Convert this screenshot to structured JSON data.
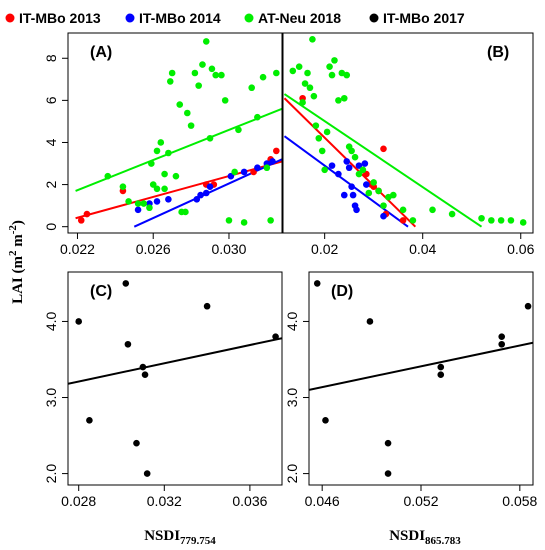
{
  "chart_data": {
    "type": "scatter",
    "ylabel_main": "LAI (m",
    "ylabel_sup1": "2",
    "ylabel_mid": " m",
    "ylabel_sup2": "-2",
    "ylabel_end": ")",
    "xlabel_left_main": "NSDI",
    "xlabel_left_sub": "779.754",
    "xlabel_right_main": "NSDI",
    "xlabel_right_sub": "865.783",
    "legend": [
      {
        "name": "IT-MBo 2013",
        "color": "#ff0000"
      },
      {
        "name": "IT-MBo 2014",
        "color": "#0000ff"
      },
      {
        "name": "AT-Neu 2018",
        "color": "#00ee00"
      },
      {
        "name": "IT-MBo 2017",
        "color": "#000000"
      }
    ],
    "panels": [
      {
        "label": "(A)",
        "xlim": [
          0.0215,
          0.0328
        ],
        "ylim": [
          -0.3,
          9.2
        ],
        "xticks": [
          0.022,
          0.026,
          0.03
        ],
        "xtick_labels": [
          "0.022",
          "0.026",
          "0.030"
        ],
        "yticks": [
          0,
          2,
          4,
          6,
          8
        ],
        "ytick_labels": [
          "0",
          "2",
          "4",
          "6",
          "8"
        ],
        "series": [
          {
            "color": "#ff0000",
            "points": [
              [
                0.0222,
                0.3
              ],
              [
                0.0225,
                0.6
              ],
              [
                0.0244,
                1.7
              ],
              [
                0.0288,
                2.0
              ],
              [
                0.0292,
                2.0
              ],
              [
                0.0313,
                2.6
              ],
              [
                0.0322,
                3.2
              ],
              [
                0.0325,
                3.6
              ]
            ]
          },
          {
            "color": "#0000ff",
            "points": [
              [
                0.0252,
                0.8
              ],
              [
                0.0258,
                1.1
              ],
              [
                0.0262,
                1.2
              ],
              [
                0.0268,
                1.3
              ],
              [
                0.0283,
                1.3
              ],
              [
                0.0285,
                1.5
              ],
              [
                0.0288,
                1.6
              ],
              [
                0.029,
                1.9
              ],
              [
                0.0301,
                2.4
              ],
              [
                0.0308,
                2.6
              ],
              [
                0.0315,
                2.8
              ],
              [
                0.032,
                3.0
              ],
              [
                0.0323,
                3.1
              ]
            ]
          },
          {
            "color": "#00ee00",
            "points": [
              [
                0.0236,
                2.4
              ],
              [
                0.0244,
                1.9
              ],
              [
                0.0247,
                1.2
              ],
              [
                0.0252,
                1.1
              ],
              [
                0.0258,
                0.9
              ],
              [
                0.026,
                2.0
              ],
              [
                0.0262,
                1.8
              ],
              [
                0.0264,
                4.0
              ],
              [
                0.0266,
                1.8
              ],
              [
                0.0268,
                3.5
              ],
              [
                0.0269,
                6.9
              ],
              [
                0.027,
                7.3
              ],
              [
                0.0272,
                2.4
              ],
              [
                0.0274,
                5.8
              ],
              [
                0.0275,
                0.7
              ],
              [
                0.0277,
                0.7
              ],
              [
                0.0278,
                5.4
              ],
              [
                0.028,
                4.8
              ],
              [
                0.0282,
                7.3
              ],
              [
                0.0284,
                6.7
              ],
              [
                0.0286,
                7.7
              ],
              [
                0.0288,
                8.8
              ],
              [
                0.029,
                4.2
              ],
              [
                0.0291,
                7.5
              ],
              [
                0.0293,
                7.2
              ],
              [
                0.0296,
                7.2
              ],
              [
                0.0298,
                6.0
              ],
              [
                0.03,
                0.3
              ],
              [
                0.0303,
                2.6
              ],
              [
                0.0305,
                4.6
              ],
              [
                0.0308,
                0.2
              ],
              [
                0.0312,
                6.6
              ],
              [
                0.0315,
                5.2
              ],
              [
                0.0318,
                7.1
              ],
              [
                0.032,
                2.8
              ],
              [
                0.0322,
                0.3
              ],
              [
                0.0325,
                7.3
              ],
              [
                0.0255,
                1.1
              ],
              [
                0.0259,
                3.0
              ],
              [
                0.0262,
                3.6
              ],
              [
                0.0266,
                2.5
              ]
            ]
          }
        ],
        "fits": [
          {
            "color": "#ff0000",
            "x": [
              0.0219,
              0.0328
            ],
            "y": [
              0.4,
              3.1
            ]
          },
          {
            "color": "#0000ff",
            "x": [
              0.025,
              0.0328
            ],
            "y": [
              0.0,
              3.2
            ]
          },
          {
            "color": "#00ee00",
            "x": [
              0.0219,
              0.0328
            ],
            "y": [
              1.7,
              5.6
            ]
          }
        ]
      },
      {
        "label": "(B)",
        "xlim": [
          0.0115,
          0.0625
        ],
        "ylim": [
          -0.3,
          9.2
        ],
        "xticks": [
          0.02,
          0.04,
          0.06
        ],
        "xtick_labels": [
          "0.02",
          "0.04",
          "0.06"
        ],
        "yticks": [
          0,
          2,
          4,
          6,
          8
        ],
        "ytick_labels": [],
        "series": [
          {
            "color": "#ff0000",
            "points": [
              [
                0.0155,
                6.1
              ],
              [
                0.0285,
                2.5
              ],
              [
                0.0295,
                2.0
              ],
              [
                0.03,
                1.9
              ],
              [
                0.031,
                1.7
              ],
              [
                0.032,
                3.7
              ],
              [
                0.0325,
                0.6
              ],
              [
                0.036,
                0.3
              ]
            ]
          },
          {
            "color": "#0000ff",
            "points": [
              [
                0.0215,
                2.9
              ],
              [
                0.0228,
                2.5
              ],
              [
                0.024,
                1.5
              ],
              [
                0.0245,
                3.1
              ],
              [
                0.025,
                2.8
              ],
              [
                0.0255,
                1.9
              ],
              [
                0.0258,
                1.5
              ],
              [
                0.0262,
                1.0
              ],
              [
                0.0265,
                0.8
              ],
              [
                0.027,
                2.9
              ],
              [
                0.0282,
                3.0
              ],
              [
                0.0285,
                2.0
              ],
              [
                0.032,
                0.5
              ]
            ]
          },
          {
            "color": "#00ee00",
            "points": [
              [
                0.0135,
                7.4
              ],
              [
                0.0148,
                7.6
              ],
              [
                0.0155,
                5.9
              ],
              [
                0.016,
                6.8
              ],
              [
                0.0165,
                7.3
              ],
              [
                0.017,
                6.6
              ],
              [
                0.0175,
                8.9
              ],
              [
                0.0178,
                6.2
              ],
              [
                0.0182,
                4.8
              ],
              [
                0.0188,
                4.2
              ],
              [
                0.0195,
                3.6
              ],
              [
                0.02,
                2.7
              ],
              [
                0.0205,
                4.5
              ],
              [
                0.021,
                7.6
              ],
              [
                0.0215,
                7.2
              ],
              [
                0.022,
                7.9
              ],
              [
                0.0228,
                6.0
              ],
              [
                0.0235,
                7.3
              ],
              [
                0.024,
                6.1
              ],
              [
                0.0245,
                7.2
              ],
              [
                0.025,
                3.8
              ],
              [
                0.0255,
                3.6
              ],
              [
                0.0262,
                3.3
              ],
              [
                0.027,
                2.5
              ],
              [
                0.0278,
                2.7
              ],
              [
                0.029,
                1.6
              ],
              [
                0.03,
                2.1
              ],
              [
                0.031,
                1.7
              ],
              [
                0.032,
                1.0
              ],
              [
                0.033,
                1.4
              ],
              [
                0.034,
                1.5
              ],
              [
                0.036,
                0.8
              ],
              [
                0.038,
                0.3
              ],
              [
                0.042,
                0.8
              ],
              [
                0.046,
                0.6
              ],
              [
                0.052,
                0.4
              ],
              [
                0.054,
                0.3
              ],
              [
                0.056,
                0.3
              ],
              [
                0.058,
                0.3
              ],
              [
                0.0605,
                0.2
              ]
            ]
          }
        ],
        "fits": [
          {
            "color": "#ff0000",
            "x": [
              0.0118,
              0.0385
            ],
            "y": [
              6.1,
              0.0
            ]
          },
          {
            "color": "#0000ff",
            "x": [
              0.0118,
              0.037
            ],
            "y": [
              4.3,
              0.0
            ]
          },
          {
            "color": "#00ee00",
            "x": [
              0.0118,
              0.052
            ],
            "y": [
              6.3,
              0.0
            ]
          }
        ]
      },
      {
        "label": "(C)",
        "xlim": [
          0.0275,
          0.0375
        ],
        "ylim": [
          1.85,
          4.65
        ],
        "xticks": [
          0.028,
          0.032,
          0.036
        ],
        "xtick_labels": [
          "0.028",
          "0.032",
          "0.036"
        ],
        "yticks": [
          2.0,
          3.0,
          4.0
        ],
        "ytick_labels": [
          "2.0",
          "3.0",
          "4.0"
        ],
        "series": [
          {
            "color": "#000000",
            "points": [
              [
                0.028,
                4.0
              ],
              [
                0.0285,
                2.7
              ],
              [
                0.0302,
                4.5
              ],
              [
                0.0303,
                3.7
              ],
              [
                0.0307,
                2.4
              ],
              [
                0.031,
                3.4
              ],
              [
                0.0311,
                3.3
              ],
              [
                0.0312,
                2.0
              ],
              [
                0.034,
                4.2
              ],
              [
                0.0372,
                3.8
              ]
            ]
          }
        ],
        "fits": [
          {
            "color": "#000000",
            "x": [
              0.0275,
              0.0375
            ],
            "y": [
              3.18,
              3.78
            ]
          }
        ]
      },
      {
        "label": "(D)",
        "xlim": [
          0.0452,
          0.0588
        ],
        "ylim": [
          1.85,
          4.65
        ],
        "xticks": [
          0.046,
          0.052,
          0.058
        ],
        "xtick_labels": [
          "0.046",
          "0.052",
          "0.058"
        ],
        "yticks": [
          2.0,
          3.0,
          4.0
        ],
        "ytick_labels": [
          "2.0",
          "3.0",
          "4.0"
        ],
        "series": [
          {
            "color": "#000000",
            "points": [
              [
                0.0457,
                4.5
              ],
              [
                0.0462,
                2.7
              ],
              [
                0.0489,
                4.0
              ],
              [
                0.05,
                2.4
              ],
              [
                0.05,
                2.0
              ],
              [
                0.0532,
                3.4
              ],
              [
                0.0532,
                3.3
              ],
              [
                0.0569,
                3.8
              ],
              [
                0.0569,
                3.7
              ],
              [
                0.0585,
                4.2
              ]
            ]
          }
        ],
        "fits": [
          {
            "color": "#000000",
            "x": [
              0.0452,
              0.0588
            ],
            "y": [
              3.1,
              3.72
            ]
          }
        ]
      }
    ]
  }
}
